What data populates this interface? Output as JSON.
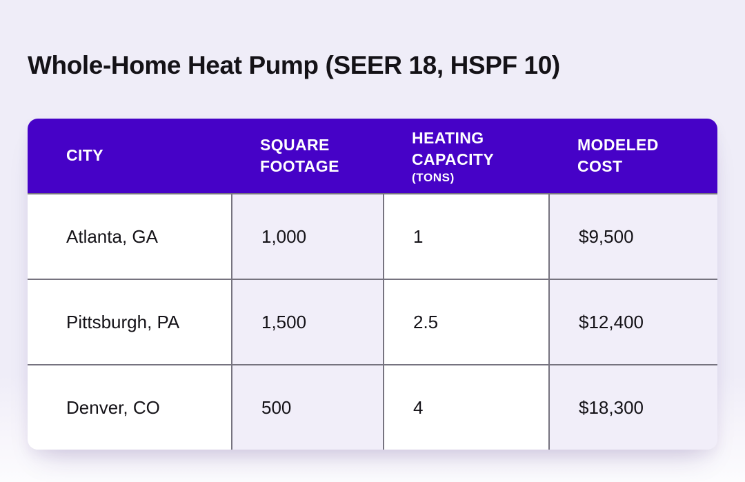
{
  "page_title": "Whole-Home Heat Pump (SEER 18, HSPF 10)",
  "colors": {
    "header_purple": "#4602C7",
    "header_text": "#FFFFFF",
    "page_bg": "#EFEDF8",
    "page_bg_bottom": "#FCFCFE",
    "cell_white": "#FFFFFF",
    "cell_lavender": "#F1EEF9",
    "grid_line": "#76737F",
    "text_dark": "#141217"
  },
  "chart_data": {
    "type": "table",
    "title": "Whole-Home Heat Pump (SEER 18, HSPF 10)",
    "columns": [
      {
        "label": "CITY",
        "sublabel": ""
      },
      {
        "label": "SQUARE FOOTAGE",
        "sublabel": ""
      },
      {
        "label": "HEATING CAPACITY",
        "sublabel": "(TONS)"
      },
      {
        "label": "MODELED COST",
        "sublabel": ""
      }
    ],
    "rows": [
      [
        "Atlanta, GA",
        "1,000",
        "1",
        "$9,500"
      ],
      [
        "Pittsburgh, PA",
        "1,500",
        "2.5",
        "$12,400"
      ],
      [
        "Denver, CO",
        "500",
        "4",
        "$18,300"
      ]
    ]
  }
}
